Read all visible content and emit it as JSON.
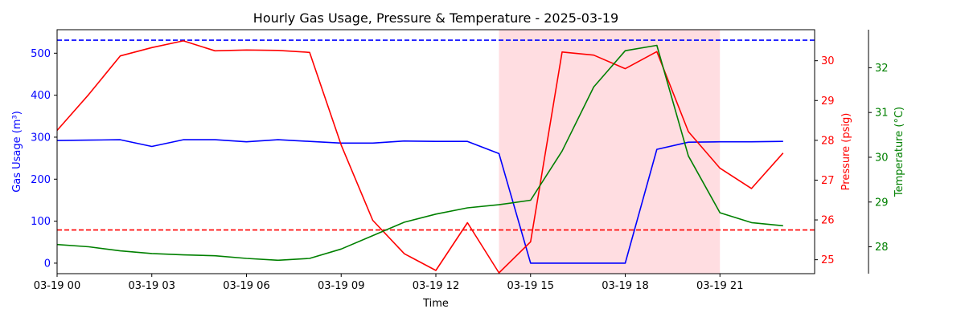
{
  "chart_data": {
    "type": "line",
    "title": "Hourly Gas Usage, Pressure & Temperature - 2025-03-19",
    "xlabel": "Time",
    "x": [
      "00:00",
      "01:00",
      "02:00",
      "03:00",
      "04:00",
      "05:00",
      "06:00",
      "07:00",
      "08:00",
      "09:00",
      "10:00",
      "11:00",
      "12:00",
      "13:00",
      "14:00",
      "15:00",
      "16:00",
      "17:00",
      "18:00",
      "19:00",
      "20:00",
      "21:00",
      "22:00",
      "23:00"
    ],
    "x_ticks": [
      {
        "hour": 0,
        "label": "03-19 00"
      },
      {
        "hour": 3,
        "label": "03-19 03"
      },
      {
        "hour": 6,
        "label": "03-19 06"
      },
      {
        "hour": 9,
        "label": "03-19 09"
      },
      {
        "hour": 12,
        "label": "03-19 12"
      },
      {
        "hour": 15,
        "label": "03-19 15"
      },
      {
        "hour": 18,
        "label": "03-19 18"
      },
      {
        "hour": 21,
        "label": "03-19 21"
      }
    ],
    "xlim": [
      0,
      24
    ],
    "shaded_region": {
      "start_hour": 14,
      "end_hour": 21,
      "color": "#ffdde1"
    },
    "axes": [
      {
        "id": "gas",
        "label": "Gas Usage (m³)",
        "color": "#0000ff",
        "ylim": [
          -25,
          556
        ],
        "ticks": [
          0,
          100,
          200,
          300,
          400,
          500
        ]
      },
      {
        "id": "pressure",
        "label": "Pressure (psig)",
        "color": "#ff0000",
        "ylim": [
          24.65,
          30.78
        ],
        "ticks": [
          25,
          26,
          27,
          28,
          29,
          30
        ]
      },
      {
        "id": "temperature",
        "label": "Temperature (°C)",
        "color": "#008000",
        "ylim": [
          27.4,
          32.85
        ],
        "ticks": [
          28,
          29,
          30,
          31,
          32
        ]
      }
    ],
    "series": [
      {
        "axis": "gas",
        "color": "#0000ff",
        "values": [
          292,
          293,
          294,
          278,
          294,
          294,
          289,
          294,
          290,
          286,
          286,
          291,
          290,
          290,
          261,
          0,
          0,
          0,
          0,
          271,
          288,
          289,
          289,
          290
        ]
      },
      {
        "axis": "pressure",
        "color": "#ff0000",
        "values": [
          28.25,
          29.15,
          30.12,
          30.33,
          30.5,
          30.25,
          30.27,
          30.26,
          30.21,
          27.88,
          25.99,
          25.15,
          24.73,
          25.93,
          24.67,
          25.45,
          30.22,
          30.14,
          29.8,
          30.23,
          28.22,
          27.3,
          26.79,
          27.68
        ]
      },
      {
        "axis": "temperature",
        "color": "#008000",
        "values": [
          28.05,
          28.0,
          27.91,
          27.85,
          27.82,
          27.8,
          27.74,
          27.7,
          27.74,
          27.95,
          28.25,
          28.55,
          28.73,
          28.87,
          28.94,
          29.04,
          30.14,
          31.57,
          32.38,
          32.5,
          30.03,
          28.76,
          28.54,
          28.47
        ]
      }
    ],
    "reference_lines": [
      {
        "axis": "gas",
        "value": 531,
        "color": "#0000ff",
        "style": "dashed"
      },
      {
        "axis": "gas",
        "value": 79,
        "color": "#ff0000",
        "style": "dashed"
      }
    ],
    "grid": false,
    "legend": "none"
  }
}
